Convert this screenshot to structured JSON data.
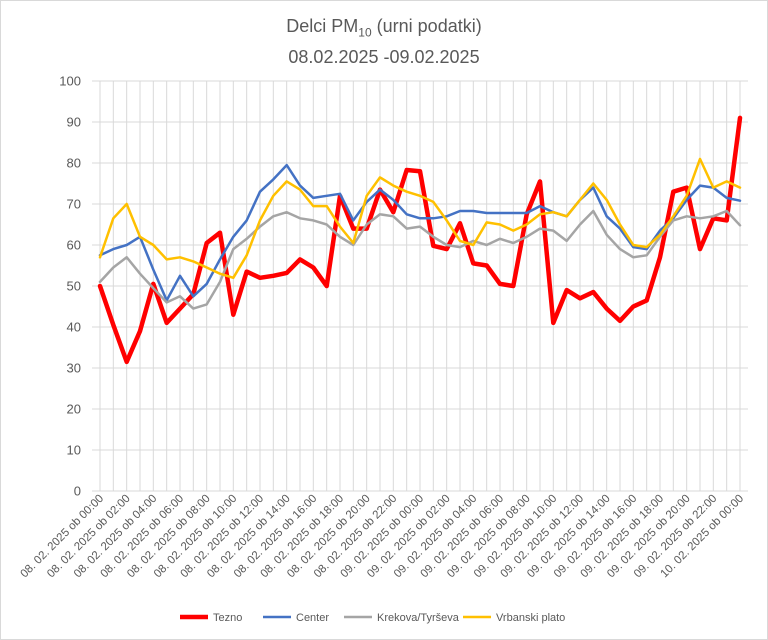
{
  "chart_data": {
    "type": "line",
    "title": "Delci PM10 (urni podatki)",
    "title_main": "Delci PM",
    "title_sub": "10",
    "title_rest": " (urni podatki)",
    "subtitle": "08.02.2025 -09.02.2025",
    "xlabel": "",
    "ylabel": "",
    "ylim": [
      0,
      100
    ],
    "yticks": [
      0,
      10,
      20,
      30,
      40,
      50,
      60,
      70,
      80,
      90,
      100
    ],
    "grid": true,
    "legend_position": "bottom",
    "x_tick_labels": [
      "08. 02. 2025 ob 00:00",
      "08. 02. 2025 ob 02:00",
      "08. 02. 2025 ob 04:00",
      "08. 02. 2025 ob 06:00",
      "08. 02. 2025 ob 08:00",
      "08. 02. 2025 ob 10:00",
      "08. 02. 2025 ob 12:00",
      "08. 02. 2025 ob 14:00",
      "08. 02. 2025 ob 16:00",
      "08. 02. 2025 ob 18:00",
      "08. 02. 2025 ob 20:00",
      "08. 02. 2025 ob 22:00",
      "09. 02. 2025 ob 00:00",
      "09. 02. 2025 ob 02:00",
      "09. 02. 2025 ob 04:00",
      "09. 02. 2025 ob 06:00",
      "09. 02. 2025 ob 08:00",
      "09. 02. 2025 ob 10:00",
      "09. 02. 2025 ob 12:00",
      "09. 02. 2025 ob 14:00",
      "09. 02. 2025 ob 16:00",
      "09. 02. 2025 ob 18:00",
      "09. 02. 2025 ob 20:00",
      "09. 02. 2025 ob 22:00",
      "10. 02. 2025 ob 00:00"
    ],
    "x_count": 49,
    "series": [
      {
        "name": "Tezno",
        "color": "#ff0000",
        "width": 4.5,
        "values": [
          50,
          40.5,
          31.5,
          39,
          50.5,
          41,
          44.5,
          48,
          60.5,
          63,
          43,
          53.5,
          52,
          52.5,
          53.2,
          56.5,
          54.5,
          50,
          72,
          64,
          64,
          73.5,
          68,
          78.3,
          78,
          59.8,
          59,
          65.3,
          55.5,
          55,
          50.5,
          50,
          67.5,
          75.5,
          41,
          49,
          47,
          48.5,
          44.5,
          41.5,
          45,
          46.5,
          57,
          73,
          74,
          59,
          66.5,
          66,
          91
        ]
      },
      {
        "name": "Center",
        "color": "#4472c4",
        "width": 2.5,
        "values": [
          57.5,
          59,
          60,
          62,
          54,
          46.5,
          52.5,
          47.5,
          50.5,
          56.5,
          62,
          66,
          73,
          76,
          79.5,
          74.5,
          71.5,
          72,
          72.5,
          66,
          70.5,
          73.5,
          71,
          67.5,
          66.5,
          66.5,
          67,
          68.3,
          68.3,
          67.8,
          67.8,
          67.8,
          67.8,
          69.5,
          68,
          67,
          71,
          74,
          67,
          64,
          59.5,
          59,
          63.5,
          66.5,
          71,
          74.5,
          74,
          71.5,
          70.8
        ]
      },
      {
        "name": "Krekova/Tyrševa",
        "color": "#a5a5a5",
        "width": 2.5,
        "values": [
          51,
          54.5,
          57,
          53,
          49.5,
          46,
          47.5,
          44.5,
          45.5,
          51,
          59,
          61.5,
          64.5,
          67,
          68,
          66.5,
          66,
          65,
          62,
          60,
          65,
          67.5,
          67,
          64,
          64.5,
          62,
          60,
          59.5,
          61,
          60,
          61.5,
          60.5,
          62,
          64,
          63.5,
          61,
          65,
          68.3,
          62.5,
          59,
          57,
          57.5,
          62,
          66,
          67,
          66.5,
          67,
          68.3,
          64.8
        ]
      },
      {
        "name": "Vrbanski plato",
        "color": "#ffc000",
        "width": 2.5,
        "values": [
          57,
          66.5,
          70,
          62,
          60,
          56.5,
          57,
          56,
          54.5,
          53,
          52,
          57.5,
          66,
          72,
          75.5,
          73.5,
          69.5,
          69.5,
          64.5,
          60.5,
          72,
          76.5,
          74.5,
          73,
          72,
          70.5,
          66,
          61,
          60,
          65.5,
          65,
          63.5,
          65,
          67.5,
          68,
          67,
          71,
          75,
          71,
          65,
          60,
          59.5,
          62.5,
          67,
          72,
          81,
          74,
          75.5,
          74
        ]
      }
    ]
  }
}
